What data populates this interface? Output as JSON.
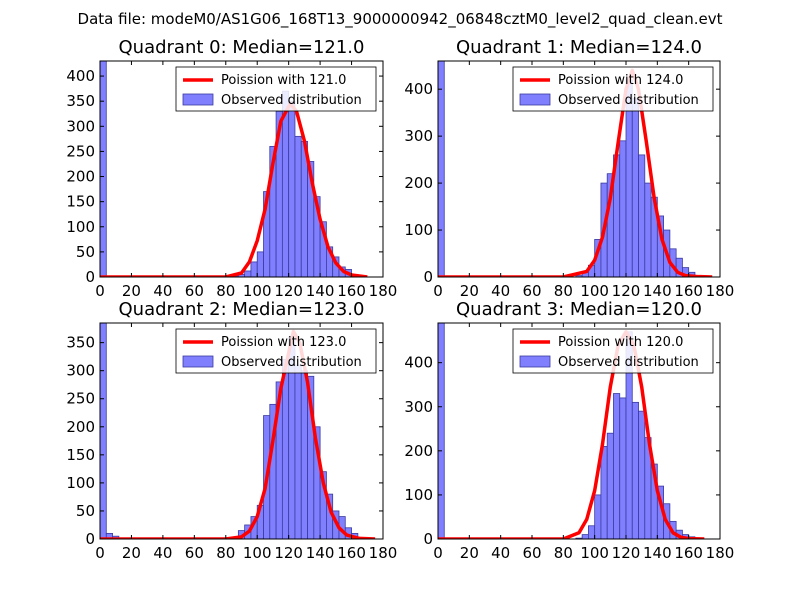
{
  "figure": {
    "suptitle": "Data file: modeM0/AS1G06_168T13_9000000942_06848cztM0_level2_quad_clean.evt"
  },
  "colors": {
    "bar_fill": "#8080ff",
    "bar_edge": "#3a3aa0",
    "curve": "#ff0000"
  },
  "chart_data": [
    {
      "type": "bar",
      "title": "Quadrant 0: Median=121.0",
      "xlim": [
        0,
        180
      ],
      "ylim": [
        0,
        430
      ],
      "xticks": [
        0,
        20,
        40,
        60,
        80,
        100,
        120,
        140,
        160,
        180
      ],
      "yticks": [
        0,
        50,
        100,
        150,
        200,
        250,
        300,
        350,
        400
      ],
      "legend": {
        "position": "top-right",
        "curve_label": "Poission with 121.0",
        "bars_label": "Observed distribution"
      },
      "bin_width": 4,
      "bins_start": [
        0,
        4,
        8,
        12,
        16,
        20,
        24,
        28,
        32,
        36,
        40,
        44,
        48,
        52,
        56,
        60,
        64,
        68,
        72,
        76,
        80,
        84,
        88,
        92,
        96,
        100,
        104,
        108,
        112,
        116,
        120,
        124,
        128,
        132,
        136,
        140,
        144,
        148,
        152,
        156,
        160,
        164,
        168
      ],
      "counts": [
        430,
        0,
        0,
        0,
        0,
        0,
        0,
        0,
        0,
        0,
        0,
        0,
        0,
        0,
        0,
        0,
        0,
        0,
        0,
        0,
        0,
        2,
        5,
        12,
        30,
        50,
        170,
        260,
        330,
        370,
        350,
        280,
        270,
        230,
        160,
        110,
        60,
        40,
        20,
        15,
        5,
        0,
        0
      ],
      "curve": {
        "mean": 121.0,
        "x": [
          0,
          20,
          40,
          60,
          80,
          90,
          95,
          100,
          105,
          110,
          115,
          121,
          125,
          130,
          135,
          140,
          145,
          150,
          155,
          160,
          170
        ],
        "y": [
          0,
          0,
          0,
          0,
          0,
          8,
          30,
          72,
          135,
          226,
          310,
          345,
          330,
          271,
          187,
          115,
          60,
          28,
          11,
          4,
          0
        ]
      }
    },
    {
      "type": "bar",
      "title": "Quadrant 1: Median=124.0",
      "xlim": [
        0,
        180
      ],
      "ylim": [
        0,
        460
      ],
      "xticks": [
        0,
        20,
        40,
        60,
        80,
        100,
        120,
        140,
        160,
        180
      ],
      "yticks": [
        0,
        100,
        200,
        300,
        400
      ],
      "legend": {
        "position": "top-right",
        "curve_label": "Poission with 124.0",
        "bars_label": "Observed distribution"
      },
      "bin_width": 4,
      "bins_start": [
        0,
        4,
        8,
        12,
        16,
        20,
        24,
        28,
        32,
        36,
        40,
        44,
        48,
        52,
        56,
        60,
        64,
        68,
        72,
        76,
        80,
        84,
        88,
        92,
        96,
        100,
        104,
        108,
        112,
        116,
        120,
        124,
        128,
        132,
        136,
        140,
        144,
        148,
        152,
        156,
        160,
        164,
        168
      ],
      "counts": [
        460,
        0,
        0,
        0,
        0,
        0,
        0,
        0,
        0,
        0,
        0,
        0,
        0,
        0,
        0,
        0,
        0,
        0,
        0,
        0,
        0,
        0,
        3,
        10,
        25,
        80,
        200,
        220,
        260,
        290,
        420,
        380,
        260,
        200,
        170,
        130,
        100,
        60,
        40,
        20,
        10,
        0,
        0
      ],
      "curve": {
        "mean": 124.0,
        "x": [
          0,
          20,
          40,
          60,
          80,
          95,
          100,
          105,
          110,
          115,
          120,
          124,
          128,
          133,
          138,
          143,
          148,
          153,
          158,
          165,
          175
        ],
        "y": [
          0,
          0,
          0,
          0,
          0,
          12,
          36,
          85,
          168,
          287,
          400,
          440,
          400,
          287,
          168,
          80,
          31,
          10,
          3,
          1,
          0
        ]
      }
    },
    {
      "type": "bar",
      "title": "Quadrant 2: Median=123.0",
      "xlim": [
        0,
        180
      ],
      "ylim": [
        0,
        385
      ],
      "xticks": [
        0,
        20,
        40,
        60,
        80,
        100,
        120,
        140,
        160,
        180
      ],
      "yticks": [
        0,
        50,
        100,
        150,
        200,
        250,
        300,
        350
      ],
      "legend": {
        "position": "top-right",
        "curve_label": "Poission with 123.0",
        "bars_label": "Observed distribution"
      },
      "bin_width": 4,
      "bins_start": [
        0,
        4,
        8,
        12,
        16,
        20,
        24,
        28,
        32,
        36,
        40,
        44,
        48,
        52,
        56,
        60,
        64,
        68,
        72,
        76,
        80,
        84,
        88,
        92,
        96,
        100,
        104,
        108,
        112,
        116,
        120,
        124,
        128,
        132,
        136,
        140,
        144,
        148,
        152,
        156,
        160,
        164,
        168
      ],
      "counts": [
        385,
        10,
        5,
        0,
        0,
        0,
        0,
        0,
        0,
        0,
        0,
        0,
        0,
        0,
        0,
        0,
        0,
        0,
        0,
        0,
        0,
        0,
        15,
        25,
        40,
        60,
        220,
        240,
        280,
        320,
        360,
        310,
        300,
        290,
        200,
        120,
        80,
        50,
        40,
        20,
        10,
        0,
        0
      ],
      "curve": {
        "mean": 123.0,
        "x": [
          0,
          20,
          40,
          60,
          80,
          90,
          95,
          100,
          105,
          110,
          115,
          123,
          127,
          132,
          137,
          142,
          147,
          152,
          157,
          165,
          175
        ],
        "y": [
          0,
          0,
          0,
          0,
          0,
          4,
          14,
          40,
          90,
          175,
          268,
          370,
          350,
          280,
          180,
          100,
          48,
          20,
          7,
          1,
          0
        ]
      }
    },
    {
      "type": "bar",
      "title": "Quadrant 3: Median=120.0",
      "xlim": [
        0,
        180
      ],
      "ylim": [
        0,
        490
      ],
      "xticks": [
        0,
        20,
        40,
        60,
        80,
        100,
        120,
        140,
        160,
        180
      ],
      "yticks": [
        0,
        100,
        200,
        300,
        400
      ],
      "legend": {
        "position": "top-right",
        "curve_label": "Poission with 120.0",
        "bars_label": "Observed distribution"
      },
      "bin_width": 4,
      "bins_start": [
        0,
        4,
        8,
        12,
        16,
        20,
        24,
        28,
        32,
        36,
        40,
        44,
        48,
        52,
        56,
        60,
        64,
        68,
        72,
        76,
        80,
        84,
        88,
        92,
        96,
        100,
        104,
        108,
        112,
        116,
        120,
        124,
        128,
        132,
        136,
        140,
        144,
        148,
        152,
        156,
        160,
        164,
        168
      ],
      "counts": [
        490,
        0,
        0,
        0,
        0,
        0,
        0,
        0,
        0,
        0,
        0,
        0,
        0,
        0,
        0,
        0,
        0,
        0,
        0,
        0,
        0,
        0,
        2,
        10,
        30,
        100,
        210,
        240,
        330,
        320,
        470,
        310,
        290,
        230,
        170,
        120,
        80,
        40,
        20,
        10,
        5,
        0,
        0
      ],
      "curve": {
        "mean": 120.0,
        "x": [
          0,
          20,
          40,
          60,
          80,
          90,
          95,
          100,
          105,
          110,
          115,
          120,
          125,
          130,
          135,
          140,
          145,
          150,
          155,
          160,
          170
        ],
        "y": [
          0,
          0,
          0,
          0,
          0,
          14,
          45,
          110,
          215,
          345,
          440,
          470,
          440,
          345,
          215,
          110,
          45,
          14,
          4,
          1,
          0
        ]
      }
    }
  ]
}
